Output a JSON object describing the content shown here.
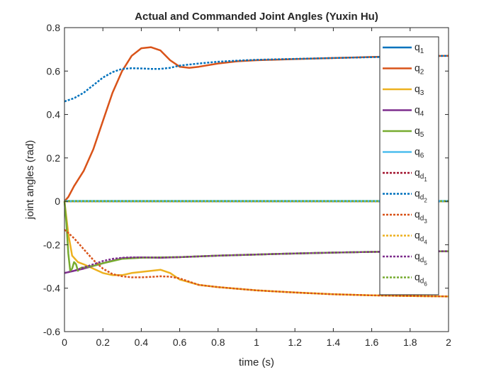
{
  "chart_data": {
    "type": "line",
    "title": "Actual and Commanded Joint Angles (Yuxin Hu)",
    "xlabel": "time (s)",
    "ylabel": "joint angles (rad)",
    "xlim": [
      0,
      2
    ],
    "ylim": [
      -0.6,
      0.8
    ],
    "xticks": [
      0,
      0.2,
      0.4,
      0.6,
      0.8,
      1,
      1.2,
      1.4,
      1.6,
      1.8,
      2
    ],
    "xtick_labels": [
      "0",
      "0.2",
      "0.4",
      "0.6",
      "0.8",
      "1",
      "1.2",
      "1.4",
      "1.6",
      "1.8",
      "2"
    ],
    "yticks": [
      -0.6,
      -0.4,
      -0.2,
      0,
      0.2,
      0.4,
      0.6,
      0.8
    ],
    "ytick_labels": [
      "-0.6",
      "-0.4",
      "-0.2",
      "0",
      "0.2",
      "0.4",
      "0.6",
      "0.8"
    ],
    "grid": false,
    "legend_position": "top-right",
    "series": [
      {
        "base": "q",
        "sub": "1",
        "subsub": "",
        "color": "#0072BD",
        "dash": false,
        "x": [
          0,
          0.5,
          1,
          1.5,
          2
        ],
        "y": [
          0,
          0,
          0,
          0,
          0
        ]
      },
      {
        "base": "q",
        "sub": "2",
        "subsub": "",
        "color": "#D95319",
        "dash": false,
        "x": [
          0,
          0.02,
          0.05,
          0.1,
          0.15,
          0.2,
          0.25,
          0.3,
          0.35,
          0.4,
          0.45,
          0.5,
          0.55,
          0.6,
          0.65,
          0.7,
          0.8,
          0.9,
          1,
          1.2,
          1.4,
          1.6,
          1.8,
          2
        ],
        "y": [
          0,
          0.02,
          0.07,
          0.14,
          0.24,
          0.37,
          0.5,
          0.6,
          0.67,
          0.705,
          0.71,
          0.695,
          0.65,
          0.62,
          0.615,
          0.62,
          0.635,
          0.645,
          0.65,
          0.655,
          0.66,
          0.665,
          0.668,
          0.67
        ]
      },
      {
        "base": "q",
        "sub": "3",
        "subsub": "",
        "color": "#EDB120",
        "dash": false,
        "x": [
          0,
          0.02,
          0.04,
          0.07,
          0.1,
          0.15,
          0.2,
          0.25,
          0.3,
          0.35,
          0.4,
          0.45,
          0.5,
          0.55,
          0.6,
          0.7,
          0.8,
          1,
          1.2,
          1.4,
          1.6,
          1.8,
          2
        ],
        "y": [
          0,
          -0.15,
          -0.25,
          -0.28,
          -0.29,
          -0.31,
          -0.33,
          -0.34,
          -0.34,
          -0.33,
          -0.325,
          -0.32,
          -0.315,
          -0.33,
          -0.36,
          -0.385,
          -0.395,
          -0.41,
          -0.42,
          -0.428,
          -0.433,
          -0.436,
          -0.438
        ]
      },
      {
        "base": "q",
        "sub": "4",
        "subsub": "",
        "color": "#7E2F8E",
        "dash": false,
        "x": [
          0,
          0.1,
          0.2,
          0.3,
          0.4,
          0.5,
          0.6,
          0.8,
          1,
          1.2,
          1.4,
          1.6,
          1.8,
          2
        ],
        "y": [
          -0.33,
          -0.31,
          -0.285,
          -0.262,
          -0.258,
          -0.26,
          -0.257,
          -0.25,
          -0.245,
          -0.24,
          -0.236,
          -0.233,
          -0.231,
          -0.23
        ]
      },
      {
        "base": "q",
        "sub": "5",
        "subsub": "",
        "color": "#77AC30",
        "dash": false,
        "x": [
          0,
          0.01,
          0.02,
          0.03,
          0.04,
          0.05,
          0.06,
          0.07,
          0.08,
          0.09,
          0.1,
          0.13,
          0.16,
          0.2,
          0.25,
          0.3,
          0.4,
          0.5,
          0.6,
          0.8,
          1,
          1.2,
          1.4,
          1.6,
          1.8,
          2
        ],
        "y": [
          0,
          -0.1,
          -0.24,
          -0.32,
          -0.31,
          -0.28,
          -0.29,
          -0.32,
          -0.31,
          -0.305,
          -0.305,
          -0.3,
          -0.295,
          -0.285,
          -0.275,
          -0.265,
          -0.26,
          -0.258,
          -0.257,
          -0.25,
          -0.245,
          -0.24,
          -0.236,
          -0.233,
          -0.231,
          -0.23
        ]
      },
      {
        "base": "q",
        "sub": "6",
        "subsub": "",
        "color": "#4DBEEE",
        "dash": false,
        "x": [
          0,
          0.5,
          1,
          1.5,
          2
        ],
        "y": [
          0.002,
          0.002,
          0.002,
          0.002,
          0.002
        ]
      },
      {
        "base": "q",
        "sub": "d",
        "subsub": "1",
        "color": "#A2142F",
        "dash": true,
        "x": [
          0,
          0.5,
          1,
          1.5,
          2
        ],
        "y": [
          0,
          0,
          0,
          0,
          0
        ]
      },
      {
        "base": "q",
        "sub": "d",
        "subsub": "2",
        "color": "#0072BD",
        "dash": true,
        "x": [
          0,
          0.05,
          0.1,
          0.15,
          0.2,
          0.25,
          0.3,
          0.35,
          0.4,
          0.45,
          0.5,
          0.55,
          0.6,
          0.7,
          0.8,
          0.9,
          1,
          1.2,
          1.4,
          1.6,
          1.8,
          2
        ],
        "y": [
          0.46,
          0.475,
          0.5,
          0.535,
          0.57,
          0.595,
          0.61,
          0.613,
          0.612,
          0.61,
          0.61,
          0.615,
          0.625,
          0.635,
          0.643,
          0.648,
          0.652,
          0.656,
          0.66,
          0.664,
          0.668,
          0.67
        ]
      },
      {
        "base": "q",
        "sub": "d",
        "subsub": "3",
        "color": "#D95319",
        "dash": true,
        "x": [
          0,
          0.05,
          0.1,
          0.15,
          0.2,
          0.25,
          0.3,
          0.35,
          0.4,
          0.45,
          0.5,
          0.55,
          0.6,
          0.65,
          0.7,
          0.8,
          1,
          1.2,
          1.4,
          1.6,
          1.8,
          2
        ],
        "y": [
          -0.13,
          -0.17,
          -0.22,
          -0.27,
          -0.31,
          -0.335,
          -0.345,
          -0.35,
          -0.35,
          -0.348,
          -0.345,
          -0.347,
          -0.355,
          -0.37,
          -0.385,
          -0.395,
          -0.41,
          -0.42,
          -0.428,
          -0.433,
          -0.436,
          -0.438
        ]
      },
      {
        "base": "q",
        "sub": "d",
        "subsub": "4",
        "color": "#EDB120",
        "dash": true,
        "x": [
          0,
          0.5,
          1,
          1.5,
          2
        ],
        "y": [
          0,
          0,
          0,
          0,
          0
        ]
      },
      {
        "base": "q",
        "sub": "d",
        "subsub": "5",
        "color": "#7E2F8E",
        "dash": true,
        "x": [
          0,
          0.05,
          0.1,
          0.15,
          0.2,
          0.25,
          0.3,
          0.35,
          0.4,
          0.5,
          0.6,
          0.8,
          1,
          1.2,
          1.4,
          1.6,
          1.8,
          2
        ],
        "y": [
          -0.33,
          -0.32,
          -0.305,
          -0.29,
          -0.275,
          -0.265,
          -0.26,
          -0.258,
          -0.258,
          -0.259,
          -0.257,
          -0.25,
          -0.245,
          -0.24,
          -0.236,
          -0.233,
          -0.231,
          -0.23
        ]
      },
      {
        "base": "q",
        "sub": "d",
        "subsub": "6",
        "color": "#77AC30",
        "dash": true,
        "x": [
          0,
          0.5,
          1,
          1.5,
          2
        ],
        "y": [
          0.001,
          0.001,
          0.001,
          0.001,
          0.001
        ]
      }
    ]
  }
}
